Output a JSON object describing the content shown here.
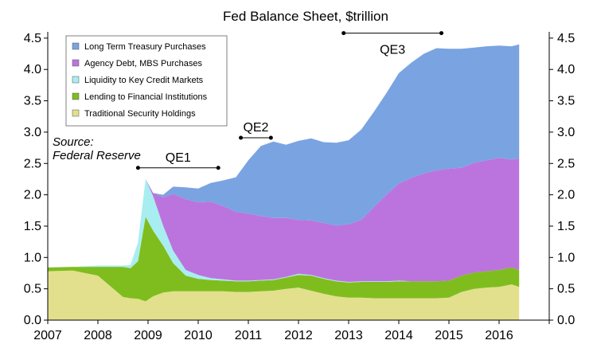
{
  "chart_data": {
    "type": "area",
    "title": "Fed Balance Sheet, $trillion",
    "xlabel": "",
    "ylabel": "",
    "x_ticks": [
      "2007",
      "2008",
      "2009",
      "2010",
      "2011",
      "2012",
      "2013",
      "2014",
      "2015",
      "2016"
    ],
    "y_ticks": [
      "0.0",
      "0.5",
      "1.0",
      "1.5",
      "2.0",
      "2.5",
      "3.0",
      "3.5",
      "4.0",
      "4.5"
    ],
    "xlim": [
      2007.0,
      2017.0
    ],
    "ylim": [
      0,
      4.6
    ],
    "stacked": true,
    "legend_position": "top-left",
    "grid": false,
    "x": [
      2007.0,
      2007.5,
      2008.0,
      2008.5,
      2008.65,
      2008.8,
      2008.95,
      2009.1,
      2009.3,
      2009.5,
      2009.75,
      2010.0,
      2010.25,
      2010.5,
      2010.75,
      2011.0,
      2011.25,
      2011.5,
      2011.75,
      2012.0,
      2012.25,
      2012.5,
      2012.75,
      2013.0,
      2013.25,
      2013.5,
      2013.75,
      2014.0,
      2014.25,
      2014.5,
      2014.75,
      2015.0,
      2015.25,
      2015.5,
      2015.75,
      2016.0,
      2016.25,
      2016.4
    ],
    "series": [
      {
        "name": "Traditional Security Holdings",
        "color": "#e2e08c",
        "values": [
          0.78,
          0.79,
          0.71,
          0.37,
          0.35,
          0.34,
          0.3,
          0.38,
          0.44,
          0.46,
          0.46,
          0.46,
          0.46,
          0.46,
          0.45,
          0.45,
          0.46,
          0.47,
          0.5,
          0.52,
          0.47,
          0.42,
          0.38,
          0.36,
          0.36,
          0.35,
          0.35,
          0.35,
          0.35,
          0.35,
          0.35,
          0.36,
          0.45,
          0.5,
          0.52,
          0.53,
          0.57,
          0.53
        ]
      },
      {
        "name": "Lending to Financial Institutions",
        "color": "#7fbd1e",
        "values": [
          0.06,
          0.06,
          0.14,
          0.48,
          0.48,
          0.6,
          1.35,
          1.05,
          0.75,
          0.45,
          0.25,
          0.2,
          0.18,
          0.17,
          0.17,
          0.17,
          0.17,
          0.17,
          0.18,
          0.2,
          0.24,
          0.24,
          0.24,
          0.24,
          0.25,
          0.26,
          0.26,
          0.27,
          0.27,
          0.27,
          0.27,
          0.27,
          0.26,
          0.26,
          0.26,
          0.27,
          0.27,
          0.27
        ]
      },
      {
        "name": "Liquidity to Key Credit Markets",
        "color": "#a8eef0",
        "values": [
          0.0,
          0.0,
          0.02,
          0.02,
          0.05,
          0.3,
          0.6,
          0.55,
          0.32,
          0.2,
          0.09,
          0.06,
          0.03,
          0.02,
          0.01,
          0.01,
          0.01,
          0.01,
          0.01,
          0.02,
          0.01,
          0.01,
          0.01,
          0.01,
          0.01,
          0.01,
          0.01,
          0.01,
          0.0,
          0.0,
          0.0,
          0.0,
          0.0,
          0.0,
          0.0,
          0.0,
          0.0,
          0.0
        ]
      },
      {
        "name": "Agency Debt, MBS Purchases",
        "color": "#bb74dd",
        "values": [
          0.0,
          0.0,
          0.0,
          0.0,
          0.0,
          0.0,
          0.0,
          0.05,
          0.45,
          0.9,
          1.13,
          1.16,
          1.22,
          1.17,
          1.1,
          1.07,
          1.02,
          0.98,
          0.94,
          0.86,
          0.87,
          0.88,
          0.88,
          0.92,
          0.98,
          1.18,
          1.38,
          1.55,
          1.65,
          1.72,
          1.77,
          1.79,
          1.72,
          1.75,
          1.77,
          1.79,
          1.72,
          1.78
        ]
      },
      {
        "name": "Long Term Treasury Purchases",
        "color": "#7aa3e2",
        "values": [
          0.0,
          0.0,
          0.0,
          0.0,
          0.0,
          0.0,
          0.0,
          0.0,
          0.04,
          0.12,
          0.19,
          0.22,
          0.3,
          0.41,
          0.55,
          0.85,
          1.12,
          1.22,
          1.17,
          1.26,
          1.31,
          1.29,
          1.32,
          1.34,
          1.44,
          1.52,
          1.62,
          1.76,
          1.84,
          1.91,
          1.95,
          1.91,
          1.9,
          1.84,
          1.82,
          1.79,
          1.81,
          1.82
        ]
      }
    ],
    "annotations": [
      {
        "text": "QE1",
        "x0": 2008.8,
        "x1": 2010.4,
        "y": 2.43
      },
      {
        "text": "QE2",
        "x0": 2010.85,
        "x1": 2011.45,
        "y": 2.91
      },
      {
        "text": "QE3",
        "x0": 2012.9,
        "x1": 2014.85,
        "y": 4.58
      }
    ],
    "source_text": [
      "Source:",
      "Federal Reserve"
    ]
  }
}
